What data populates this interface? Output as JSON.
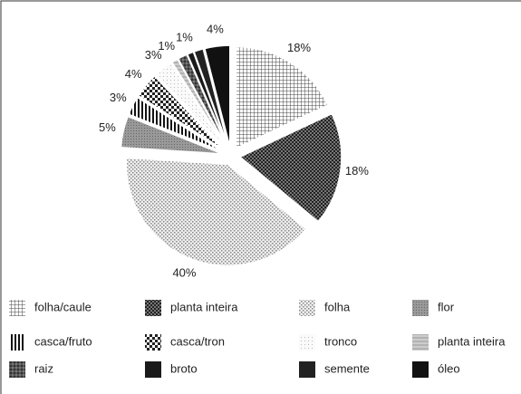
{
  "chart_data": {
    "type": "pie",
    "categories": [
      "folha/caule",
      "planta inteira",
      "folha",
      "flor",
      "casca/fruto",
      "casca/tron",
      "tronco",
      "planta inteira",
      "raiz",
      "broto",
      "semente",
      "óleo"
    ],
    "values": [
      18,
      18,
      40,
      5,
      3,
      4,
      3,
      1,
      1.5,
      1,
      1.5,
      4
    ],
    "value_labels": [
      "18%",
      "18%",
      "40%",
      "5%",
      "3%",
      "4%",
      "3%",
      "1%",
      null,
      "1%",
      null,
      "4%"
    ],
    "legend": "bottom"
  }
}
